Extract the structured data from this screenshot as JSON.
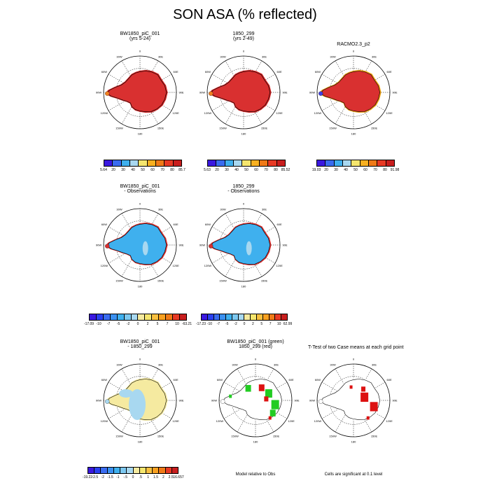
{
  "figure_title": "SON ASA (% reflected)",
  "lon_labels": [
    "0",
    "30E",
    "60E",
    "90E",
    "120E",
    "150E",
    "180",
    "150W",
    "120W",
    "90W",
    "60W",
    "30W"
  ],
  "panels": [
    {
      "id": "p1",
      "title": [
        "BW1850_piC_001",
        "(yrs 5-24)"
      ],
      "fill": "#d93030",
      "coast": "#cc2020",
      "peninsula": "#f08020"
    },
    {
      "id": "p2",
      "title": [
        "1850_299",
        "(yrs 2-49)"
      ],
      "fill": "#d93030",
      "coast": "#cc2020",
      "peninsula": "#f08020"
    },
    {
      "id": "p3",
      "title": [
        "RACMO2.3_p2"
      ],
      "fill": "#d93030",
      "coast": "#f0a010",
      "peninsula": "#4040e0"
    },
    {
      "id": "p4",
      "title": [
        "BW1850_piC_001",
        "- Observations"
      ],
      "fill": "#3fb0ee",
      "coast": "#d93030",
      "peninsula": "#d93030"
    },
    {
      "id": "p5",
      "title": [
        "1850_299",
        "- Observations"
      ],
      "fill": "#3fb0ee",
      "coast": "#d93030",
      "peninsula": "#d93030"
    },
    {
      "id": "p6",
      "title": [
        "BW1850_piC_001",
        "- 1850_299"
      ],
      "fill": "#f5eaa0",
      "coast": "#f5eaa0",
      "peninsula": "#a8d8f0"
    },
    {
      "id": "p7",
      "title": [
        "BW1850_piC_001 (green)",
        "1850_299 (red)"
      ],
      "fill": "#ffffff",
      "coast": "#ffffff",
      "peninsula": "#ffffff"
    },
    {
      "id": "p8",
      "title": [
        "T-Test of two Case means at each grid point"
      ],
      "fill": "#ffffff",
      "coast": "#ffffff",
      "peninsula": "#ffffff"
    }
  ],
  "colorbars": [
    {
      "id": "cb1",
      "colors": [
        "#3a18e0",
        "#3a6cf0",
        "#3fb0ee",
        "#a8d8f0",
        "#f5e66e",
        "#f8b020",
        "#f07a18",
        "#e83a24",
        "#c81e1e"
      ],
      "labels": [
        "5.64",
        "20",
        "30",
        "40",
        "50",
        "60",
        "70",
        "80",
        "85.7"
      ]
    },
    {
      "id": "cb2",
      "colors": [
        "#3a18e0",
        "#3a6cf0",
        "#3fb0ee",
        "#a8d8f0",
        "#f5e66e",
        "#f8b020",
        "#f07a18",
        "#e83a24",
        "#c81e1e"
      ],
      "labels": [
        "5.63",
        "20",
        "30",
        "40",
        "50",
        "60",
        "70",
        "80",
        "85.52"
      ]
    },
    {
      "id": "cb3",
      "colors": [
        "#3a18e0",
        "#3a6cf0",
        "#3fb0ee",
        "#a8d8f0",
        "#f5e66e",
        "#f8b020",
        "#f07a18",
        "#e83a24",
        "#c81e1e"
      ],
      "labels": [
        "19.03",
        "20",
        "30",
        "40",
        "50",
        "60",
        "70",
        "80",
        "91.98"
      ]
    },
    {
      "id": "cb4",
      "colors": [
        "#3a18e0",
        "#2a40f0",
        "#3a6cf0",
        "#3a90f0",
        "#3fb0ee",
        "#7cc8f0",
        "#a8d8f0",
        "#f5eaa0",
        "#f5e66e",
        "#f8c040",
        "#f8a020",
        "#f07a18",
        "#e83a24",
        "#c81e1e"
      ],
      "labels": [
        "-17.09",
        "-10",
        "-7",
        "-5",
        "-2",
        "0",
        "2",
        "5",
        "7",
        "10",
        "-63.21"
      ]
    },
    {
      "id": "cb5",
      "colors": [
        "#3a18e0",
        "#2a40f0",
        "#3a6cf0",
        "#3a90f0",
        "#3fb0ee",
        "#7cc8f0",
        "#a8d8f0",
        "#f5eaa0",
        "#f5e66e",
        "#f8c040",
        "#f8a020",
        "#f07a18",
        "#e83a24",
        "#c81e1e"
      ],
      "labels": [
        "-17.23",
        "-10",
        "-7",
        "-5",
        "-2",
        "0",
        "2",
        "5",
        "7",
        "10",
        "62.99"
      ]
    },
    {
      "id": "cb6",
      "colors": [
        "#3a18e0",
        "#2a40f0",
        "#3a6cf0",
        "#3a90f0",
        "#3fb0ee",
        "#7cc8f0",
        "#a8d8f0",
        "#f5eaa0",
        "#f5e66e",
        "#f8c040",
        "#f8a020",
        "#f07a18",
        "#e83a24",
        "#c81e1e"
      ],
      "labels": [
        "-19.22",
        "-2.5",
        "-2",
        "-1.5",
        "-1",
        "-.5",
        "0",
        ".5",
        "1",
        "1.5",
        "2",
        "2.5",
        "16.657"
      ]
    }
  ],
  "notes": {
    "p7": "Model relative to Obs",
    "p8": "Cells are significant at 0.1 level"
  }
}
